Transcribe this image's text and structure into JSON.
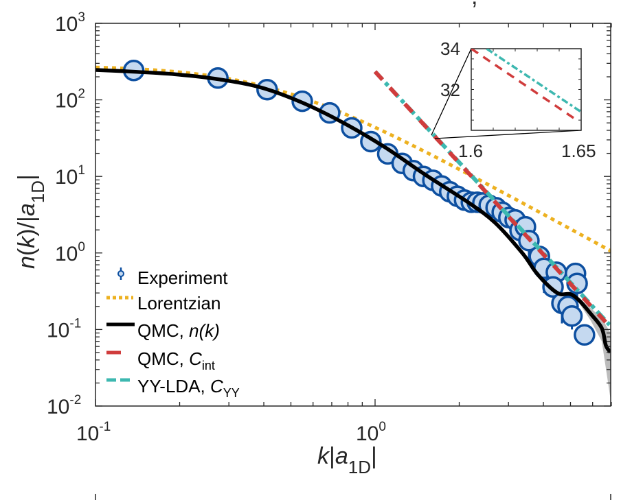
{
  "chart_data": {
    "type": "line",
    "title_fragment": ",",
    "xlabel": {
      "main": "k|a",
      "sub": "1D",
      "suffix": "|"
    },
    "ylabel": {
      "main": "n(k)/|a",
      "sub": "1D",
      "suffix": "|"
    },
    "xscale": "log",
    "yscale": "log",
    "xlim": [
      0.1,
      7.0
    ],
    "ylim": [
      0.01,
      1000
    ],
    "xticks": [
      {
        "base": "10",
        "exp": "-1",
        "value": 0.1
      },
      {
        "base": "10",
        "exp": "0",
        "value": 1
      }
    ],
    "yticks": [
      {
        "base": "10",
        "exp": "-2",
        "value": 0.01
      },
      {
        "base": "10",
        "exp": "-1",
        "value": 0.1
      },
      {
        "base": "10",
        "exp": "0",
        "value": 1
      },
      {
        "base": "10",
        "exp": "1",
        "value": 10
      },
      {
        "base": "10",
        "exp": "2",
        "value": 100
      },
      {
        "base": "10",
        "exp": "3",
        "value": 1000
      }
    ],
    "grid": false,
    "legend_position": "bottom-left",
    "series": [
      {
        "name": "Experiment",
        "style": "markers-errorbars",
        "color": "#0D4FA0",
        "fill": "#C5D9F0",
        "points": [
          [
            0.137,
            242
          ],
          [
            0.274,
            193
          ],
          [
            0.411,
            136
          ],
          [
            0.549,
            96
          ],
          [
            0.688,
            67.6
          ],
          [
            0.825,
            43
          ],
          [
            0.966,
            28.5
          ],
          [
            1.11,
            19.7
          ],
          [
            1.25,
            14.8
          ],
          [
            1.37,
            11.9
          ],
          [
            1.49,
            10.0
          ],
          [
            1.61,
            8.9
          ],
          [
            1.73,
            7.5
          ],
          [
            1.85,
            6.3
          ],
          [
            1.97,
            5.5
          ],
          [
            2.09,
            4.9
          ],
          [
            2.21,
            4.6
          ],
          [
            2.32,
            4.6
          ],
          [
            2.43,
            4.5
          ],
          [
            2.56,
            4.2
          ],
          [
            2.71,
            3.9
          ],
          [
            2.85,
            3.4
          ],
          [
            3.01,
            2.9
          ],
          [
            3.17,
            2.7
          ],
          [
            3.3,
            1.97
          ],
          [
            3.45,
            2.2
          ],
          [
            3.55,
            1.45
          ],
          [
            3.87,
            0.9
          ],
          [
            4.02,
            0.63
          ],
          [
            4.45,
            0.56
          ],
          [
            4.33,
            0.36
          ],
          [
            5.21,
            0.54
          ],
          [
            5.28,
            0.4
          ],
          [
            4.66,
            0.22
          ],
          [
            4.9,
            0.2
          ],
          [
            5.06,
            0.15
          ],
          [
            5.61,
            0.085
          ]
        ],
        "error_lower": [
          [
            3.55,
            0.75
          ],
          [
            4.02,
            0.3
          ],
          [
            4.45,
            0.3
          ],
          [
            5.21,
            0.25
          ],
          [
            5.28,
            0.2
          ],
          [
            4.66,
            0.12
          ],
          [
            4.9,
            0.12
          ],
          [
            5.06,
            0.1
          ]
        ]
      },
      {
        "name": "Lorentzian",
        "style": "dotted",
        "color": "#EDB120",
        "function": {
          "type": "lorentzian",
          "amplitude": 280,
          "k0": 0.43
        }
      },
      {
        "name": "QMC, n(k)",
        "style": "solid",
        "color": "#000000",
        "points": [
          [
            0.1,
            246
          ],
          [
            0.141,
            232
          ],
          [
            0.198,
            214
          ],
          [
            0.278,
            185
          ],
          [
            0.391,
            145
          ],
          [
            0.549,
            92
          ],
          [
            0.771,
            50
          ],
          [
            1.08,
            24.3
          ],
          [
            1.52,
            10.4
          ],
          [
            2.13,
            4.7
          ],
          [
            2.68,
            2.5
          ],
          [
            3.36,
            1.0
          ],
          [
            3.76,
            0.56
          ],
          [
            4.21,
            0.36
          ],
          [
            4.58,
            0.29
          ],
          [
            4.99,
            0.29
          ],
          [
            5.37,
            0.24
          ],
          [
            5.91,
            0.16
          ],
          [
            6.47,
            0.104
          ],
          [
            6.69,
            0.062
          ],
          [
            6.96,
            0.05
          ]
        ],
        "uncertainty_band": {
          "color": "#A0A0A0",
          "upper": [
            [
              5.37,
              0.26
            ],
            [
              5.91,
              0.19
            ],
            [
              6.47,
              0.14
            ],
            [
              6.96,
              0.09
            ]
          ],
          "lower": [
            [
              5.37,
              0.22
            ],
            [
              5.91,
              0.13
            ],
            [
              6.47,
              0.07
            ],
            [
              6.96,
              0.012
            ]
          ]
        }
      },
      {
        "name": "QMC, C_int",
        "style": "dashed",
        "color": "#D03C3C",
        "points": [
          [
            1.0,
            234
          ],
          [
            6.9,
            0.11
          ]
        ]
      },
      {
        "name": "YY-LDA, C_YY",
        "style": "dashdot",
        "color": "#3DB8B0",
        "points": [
          [
            1.0,
            234
          ],
          [
            6.9,
            0.115
          ]
        ]
      }
    ],
    "legend": [
      {
        "label": "Experiment",
        "italic_part": "",
        "sub": ""
      },
      {
        "label": "Lorentzian",
        "italic_part": "",
        "sub": ""
      },
      {
        "label": "QMC, ",
        "italic_part": "n(k)",
        "sub": ""
      },
      {
        "label": "QMC, ",
        "italic_part": "C",
        "sub": "int"
      },
      {
        "label": "YY-LDA, ",
        "italic_part": "C",
        "sub": "YY"
      }
    ],
    "inset": {
      "xlim": [
        1.6,
        1.65
      ],
      "ylim": [
        30,
        34
      ],
      "xtick_labels": [
        "1.6",
        "1.65"
      ],
      "ytick_labels": [
        "34",
        "32"
      ],
      "series": [
        {
          "name": "QMC, C_int",
          "points": [
            [
              1.6,
              34.0
            ],
            [
              1.648,
              30.5
            ]
          ]
        },
        {
          "name": "YY-LDA, C_YY",
          "points": [
            [
              1.607,
              34.0
            ],
            [
              1.65,
              30.9
            ]
          ]
        }
      ]
    }
  }
}
